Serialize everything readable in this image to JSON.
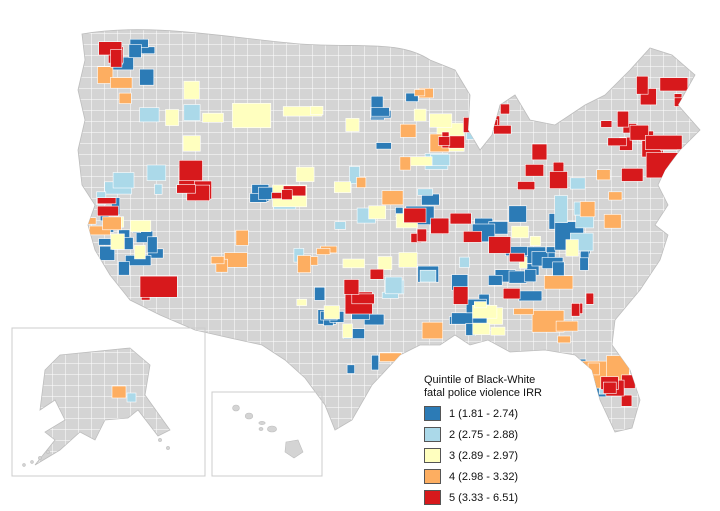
{
  "legend": {
    "title": [
      "Quintile of Black-White",
      "fatal police violence IRR"
    ],
    "items": [
      {
        "label": "1 (1.81 - 2.74)",
        "color": "#2C7BB6"
      },
      {
        "label": "2 (2.75 - 2.88)",
        "color": "#ABD9E9"
      },
      {
        "label": "3 (2.89 - 2.97)",
        "color": "#FFFFBF"
      },
      {
        "label": "4 (2.98 - 3.32)",
        "color": "#FDAE61"
      },
      {
        "label": "5 (3.33 - 6.51)",
        "color": "#D7191C"
      }
    ]
  },
  "map": {
    "county_fill_color": "#d4d4d4",
    "county_border_color": "#ffffff",
    "outline_color": "#bdbdbd",
    "inset_box_color": "#cccccc"
  }
}
